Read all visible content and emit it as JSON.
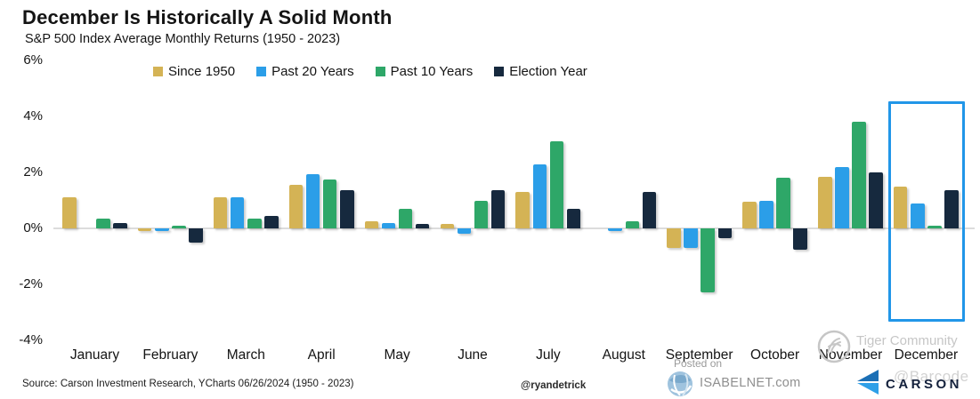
{
  "header": {
    "title": "December Is Historically A Solid Month",
    "subtitle": "S&P 500 Index Average Monthly Returns (1950 - 2023)"
  },
  "chart_data": {
    "type": "bar",
    "title": "December Is Historically A Solid Month",
    "subtitle": "S&P 500 Index Average Monthly Returns (1950 - 2023)",
    "categories": [
      "January",
      "February",
      "March",
      "April",
      "May",
      "June",
      "July",
      "August",
      "September",
      "October",
      "November",
      "December"
    ],
    "series": [
      {
        "name": "Since 1950",
        "color": "#D4B355",
        "values": [
          1.1,
          -0.1,
          1.1,
          1.55,
          0.25,
          0.15,
          1.3,
          0.0,
          -0.7,
          0.95,
          1.85,
          1.5
        ]
      },
      {
        "name": "Past 20 Years",
        "color": "#2B9EE8",
        "values": [
          0.0,
          -0.1,
          1.1,
          1.95,
          0.2,
          -0.2,
          2.3,
          -0.1,
          -0.7,
          1.0,
          2.2,
          0.9
        ]
      },
      {
        "name": "Past 10 Years",
        "color": "#2EA768",
        "values": [
          0.35,
          0.1,
          0.35,
          1.75,
          0.7,
          1.0,
          3.1,
          0.25,
          -2.3,
          1.8,
          3.8,
          0.1
        ]
      },
      {
        "name": "Election Year",
        "color": "#16293E",
        "values": [
          0.2,
          -0.5,
          0.45,
          1.35,
          0.15,
          1.35,
          0.7,
          1.3,
          -0.35,
          -0.75,
          2.0,
          1.35
        ]
      }
    ],
    "ylabel": "",
    "yticks": [
      6,
      4,
      2,
      0,
      -2,
      -4
    ],
    "ylim": [
      -4,
      6
    ],
    "grid": false,
    "legend_position": "top",
    "highlight": {
      "category": "December",
      "color": "#2196E8"
    }
  },
  "footer": {
    "source": "Source: Carson Investment Research, YCharts 06/26/2024 (1950 - 2023)",
    "handle": "@ryandetrick"
  },
  "watermarks": {
    "tiger": "Tiger Community",
    "posted_on": "Posted on",
    "isabelnet": "ISABELNET.com",
    "barcode": "@Barcode"
  },
  "branding": {
    "carson": "CARSON"
  }
}
